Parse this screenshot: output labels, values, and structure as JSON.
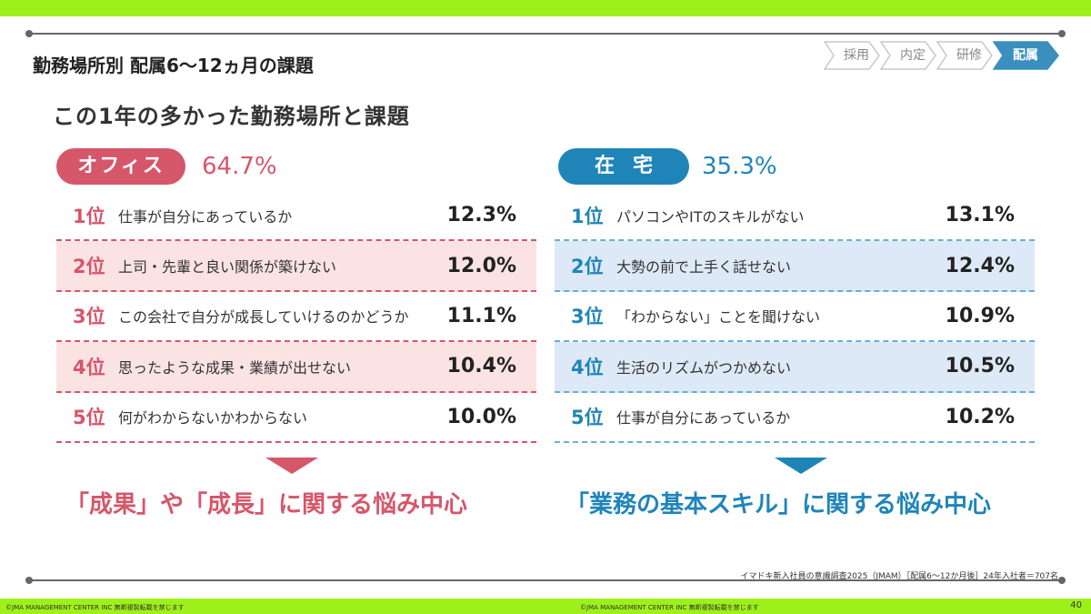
{
  "header": {
    "section_title": "勤務場所別 配属6〜12ヵ月の課題",
    "main_title": "この1年の多かった勤務場所と課題"
  },
  "steps": [
    {
      "label": "採用",
      "active": false
    },
    {
      "label": "内定",
      "active": false
    },
    {
      "label": "研修",
      "active": false
    },
    {
      "label": "配属",
      "active": true
    }
  ],
  "office": {
    "badge": "オフィス",
    "percent": "64.7%",
    "color": "#d6566a",
    "items": [
      {
        "rank": "1位",
        "label": "仕事が自分にあっているか",
        "value": "12.3%"
      },
      {
        "rank": "2位",
        "label": "上司・先輩と良い関係が築けない",
        "value": "12.0%"
      },
      {
        "rank": "3位",
        "label": "この会社で自分が成長していけるのかどうか",
        "value": "11.1%"
      },
      {
        "rank": "4位",
        "label": "思ったような成果・業績が出せない",
        "value": "10.4%"
      },
      {
        "rank": "5位",
        "label": "何がわからないかわからない",
        "value": "10.0%"
      }
    ],
    "conclusion": "「成果」や「成長」に関する悩み中心"
  },
  "home": {
    "badge": "在宅",
    "percent": "35.3%",
    "color": "#1f85b8",
    "items": [
      {
        "rank": "1位",
        "label": "パソコンやITのスキルがない",
        "value": "13.1%"
      },
      {
        "rank": "2位",
        "label": "大勢の前で上手く話せない",
        "value": "12.4%"
      },
      {
        "rank": "3位",
        "label": "「わからない」ことを聞けない",
        "value": "10.9%"
      },
      {
        "rank": "4位",
        "label": "生活のリズムがつかめない",
        "value": "10.5%"
      },
      {
        "rank": "5位",
        "label": "仕事が自分にあっているか",
        "value": "10.2%"
      }
    ],
    "conclusion": "「業務の基本スキル」に関する悩み中心"
  },
  "source": "イマドキ新入社員の意識調査2025（JMAM）［配属6〜12か月後］24年入社者＝707名",
  "footer": {
    "copyright_left": "©JMA MANAGEMENT CENTER INC 無断複製転載を禁じます",
    "copyright_center": "©JMA MANAGEMENT CENTER INC 無断複製転載を禁じます",
    "page_number": "40"
  }
}
